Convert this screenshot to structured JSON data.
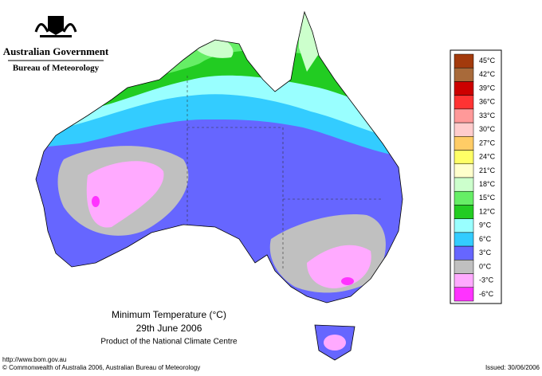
{
  "header": {
    "title": "Australian Government",
    "subtitle": "Bureau of Meteorology"
  },
  "map": {
    "title": "Minimum Temperature (°C)",
    "date": "29th June 2006",
    "product": "Product of the National Climate Centre"
  },
  "legend": [
    {
      "label": "45°C",
      "color": "#a33a0c"
    },
    {
      "label": "42°C",
      "color": "#a86a3a"
    },
    {
      "label": "39°C",
      "color": "#cc0000"
    },
    {
      "label": "36°C",
      "color": "#ff3333"
    },
    {
      "label": "33°C",
      "color": "#ff9999"
    },
    {
      "label": "30°C",
      "color": "#ffcccc"
    },
    {
      "label": "27°C",
      "color": "#ffcc66"
    },
    {
      "label": "24°C",
      "color": "#ffff66"
    },
    {
      "label": "21°C",
      "color": "#ffffcc"
    },
    {
      "label": "18°C",
      "color": "#ccffcc"
    },
    {
      "label": "15°C",
      "color": "#66ee66"
    },
    {
      "label": "12°C",
      "color": "#22cc22"
    },
    {
      "label": "9°C",
      "color": "#99ffff"
    },
    {
      "label": "6°C",
      "color": "#33ccff"
    },
    {
      "label": "3°C",
      "color": "#6666ff"
    },
    {
      "label": "0°C",
      "color": "#c0c0c0"
    },
    {
      "label": "-3°C",
      "color": "#ffaaff"
    },
    {
      "label": "-6°C",
      "color": "#ff33ff"
    }
  ],
  "footer": {
    "url": "http://www.bom.gov.au",
    "copyright": "© Commonwealth of Australia 2006, Australian Bureau of Meteorology",
    "issued": "Issued: 30/06/2006"
  }
}
